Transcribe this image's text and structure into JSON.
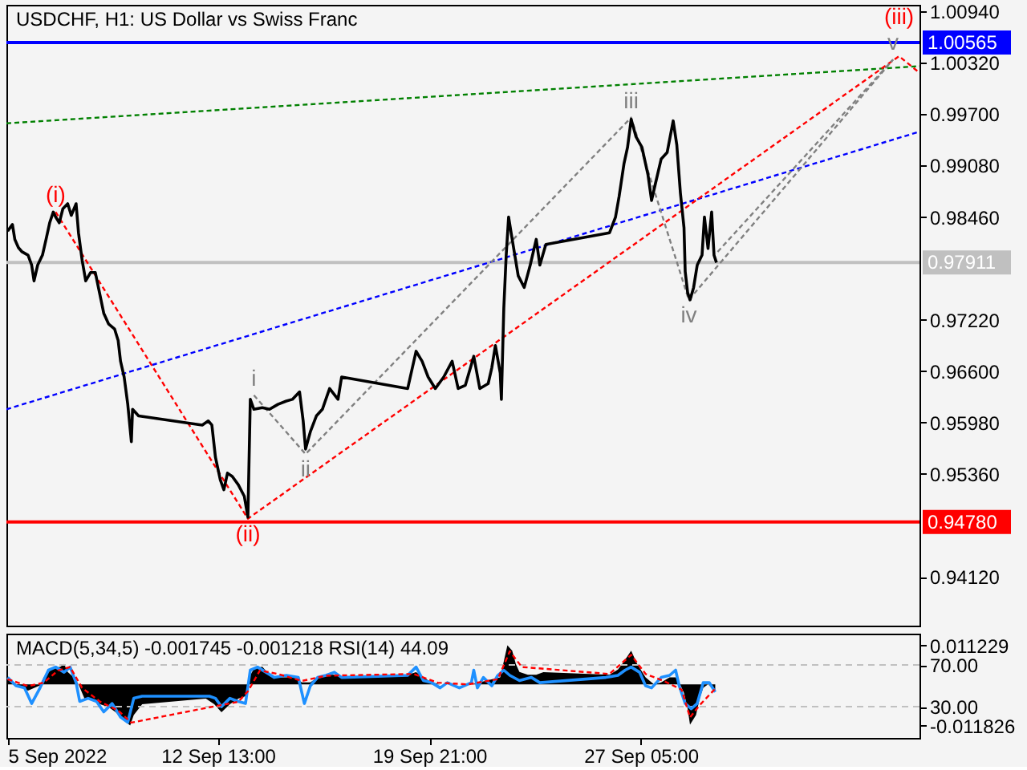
{
  "chart_data": [
    {
      "type": "line",
      "title": "USDCHF, H1: US Dollar vs Swiss Franc",
      "xlim": [
        "2022-09-05T05:00",
        "2022-10-06T21:00"
      ],
      "ylim": [
        0.9353,
        1.0102
      ],
      "tick_labels": "y",
      "yticks": [
        {
          "value": 1.0094,
          "label": "1.00940"
        },
        {
          "value": 1.0032,
          "label": "1.00320"
        },
        {
          "value": 0.997,
          "label": "0.99700"
        },
        {
          "value": 0.9908,
          "label": "0.99080"
        },
        {
          "value": 0.9846,
          "label": "0.98460"
        },
        {
          "value": 0.9722,
          "label": "0.97220"
        },
        {
          "value": 0.966,
          "label": "0.96600"
        },
        {
          "value": 0.9598,
          "label": "0.95980"
        },
        {
          "value": 0.9536,
          "label": "0.95360"
        },
        {
          "value": 0.9412,
          "label": "0.94120"
        }
      ],
      "series": [
        {
          "color": "#008000",
          "line_style": "dotted",
          "x": [
            "2022-09-05T05:00",
            "2022-10-06T21:00"
          ],
          "values": [
            0.9959,
            1.0028
          ]
        },
        {
          "color": "#0000ff",
          "line_style": "dotted",
          "x": [
            "2022-09-05T05:00",
            "2022-10-06T21:00"
          ],
          "values": [
            0.9614,
            0.9949
          ]
        },
        {
          "color": "#ff0000",
          "line_style": "dotted",
          "x": [
            "2022-09-06T22:00",
            "2022-09-13T14:00",
            "2022-10-06T04:00",
            "2022-10-06T21:00"
          ],
          "values": [
            0.9852,
            0.9482,
            1.004,
            1.002
          ]
        },
        {
          "color": "#808080",
          "line_style": "dotted",
          "x": [
            "2022-09-13T19:00",
            "2022-09-15T14:00",
            "2022-09-26T21:00",
            "2022-09-28T21:00",
            "2022-10-05T23:00"
          ],
          "values": [
            0.9631,
            0.956,
            0.9966,
            0.9746,
            1.0036
          ]
        },
        {
          "color": "#808080",
          "line_style": "dotted",
          "x": [
            "2022-09-29T21:00",
            "2022-10-05T23:00"
          ],
          "values": [
            0.9804,
            1.0036
          ]
        },
        {
          "color": "#000000",
          "x": [
            "2022-09-05T06:00",
            "2022-09-05T10:00",
            "2022-09-05T12:00",
            "2022-09-05T15:00",
            "2022-09-05T18:00",
            "2022-09-05T23:00",
            "2022-09-06T02:00",
            "2022-09-06T04:00",
            "2022-09-06T07:00",
            "2022-09-06T11:00",
            "2022-09-06T14:00",
            "2022-09-06T17:00",
            "2022-09-06T20:00",
            "2022-09-06T22:00",
            "2022-09-07T01:00",
            "2022-09-07T04:00",
            "2022-09-07T08:00",
            "2022-09-07T11:00",
            "2022-09-07T15:00",
            "2022-09-07T17:00",
            "2022-09-07T20:00",
            "2022-09-07T23:00",
            "2022-09-08T03:00",
            "2022-09-08T07:00",
            "2022-09-08T11:00",
            "2022-09-08T14:00",
            "2022-09-08T18:00",
            "2022-09-08T23:00",
            "2022-09-09T02:00",
            "2022-09-09T04:00",
            "2022-09-09T07:00",
            "2022-09-09T10:00",
            "2022-09-09T13:00",
            "2022-09-09T14:00",
            "2022-09-09T19:00",
            "2022-09-12T00:00",
            "2022-09-12T05:00",
            "2022-09-12T08:00",
            "2022-09-12T11:00",
            "2022-09-12T15:00",
            "2022-09-12T18:00",
            "2022-09-12T21:00",
            "2022-09-13T01:00",
            "2022-09-13T06:00",
            "2022-09-13T11:00",
            "2022-09-13T14:00",
            "2022-09-13T16:00",
            "2022-09-13T19:00",
            "2022-09-14T02:00",
            "2022-09-14T08:00",
            "2022-09-14T15:00",
            "2022-09-14T22:00",
            "2022-09-15T03:00",
            "2022-09-15T09:00",
            "2022-09-15T12:00",
            "2022-09-15T14:00",
            "2022-09-15T18:00",
            "2022-09-15T23:00",
            "2022-09-16T04:00",
            "2022-09-16T10:00",
            "2022-09-16T17:00",
            "2022-09-16T20:00",
            "2022-09-19T03:00",
            "2022-09-19T10:00",
            "2022-09-19T15:00",
            "2022-09-19T20:00",
            "2022-09-20T02:00",
            "2022-09-20T09:00",
            "2022-09-20T16:00",
            "2022-09-20T21:00",
            "2022-09-21T03:00",
            "2022-09-21T10:00",
            "2022-09-21T15:00",
            "2022-09-21T22:00",
            "2022-09-22T01:00",
            "2022-09-22T04:00",
            "2022-09-22T08:00",
            "2022-09-22T09:00",
            "2022-09-22T11:00",
            "2022-09-22T13:00",
            "2022-09-22T15:00",
            "2022-09-22T18:00",
            "2022-09-22T23:00",
            "2022-09-23T04:00",
            "2022-09-23T09:00",
            "2022-09-23T14:00",
            "2022-09-23T17:00",
            "2022-09-23T22:00",
            "2022-09-26T03:00",
            "2022-09-26T08:00",
            "2022-09-26T11:00",
            "2022-09-26T15:00",
            "2022-09-26T18:00",
            "2022-09-26T21:00",
            "2022-09-27T01:00",
            "2022-09-27T06:00",
            "2022-09-27T11:00",
            "2022-09-27T14:00",
            "2022-09-27T17:00",
            "2022-09-27T22:00",
            "2022-09-28T03:00",
            "2022-09-28T08:00",
            "2022-09-28T11:00",
            "2022-09-28T14:00",
            "2022-09-28T17:00",
            "2022-09-28T18:00",
            "2022-09-28T20:00",
            "2022-09-28T22:00",
            "2022-09-29T01:00",
            "2022-09-29T04:00",
            "2022-09-29T08:00",
            "2022-09-29T10:00",
            "2022-09-29T13:00",
            "2022-09-29T16:00",
            "2022-09-29T18:00",
            "2022-09-29T20:00"
          ],
          "values": [
            0.9829,
            0.9837,
            0.9819,
            0.9809,
            0.9804,
            0.98,
            0.9788,
            0.9769,
            0.9788,
            0.98,
            0.9819,
            0.9839,
            0.9852,
            0.9846,
            0.9839,
            0.9856,
            0.9862,
            0.9848,
            0.9862,
            0.9827,
            0.9794,
            0.9769,
            0.9779,
            0.9779,
            0.9751,
            0.973,
            0.9717,
            0.9711,
            0.9697,
            0.9672,
            0.9653,
            0.962,
            0.9575,
            0.9614,
            0.9606,
            0.9595,
            0.96,
            0.9595,
            0.9556,
            0.9529,
            0.9517,
            0.9537,
            0.9533,
            0.9523,
            0.9509,
            0.9484,
            0.9626,
            0.9614,
            0.9616,
            0.9614,
            0.962,
            0.9624,
            0.9626,
            0.9635,
            0.96,
            0.9566,
            0.9587,
            0.9606,
            0.9614,
            0.9639,
            0.9626,
            0.9653,
            0.9639,
            0.9684,
            0.9672,
            0.9653,
            0.9639,
            0.9653,
            0.9672,
            0.9639,
            0.9643,
            0.9678,
            0.9639,
            0.9645,
            0.9664,
            0.9691,
            0.9658,
            0.9626,
            0.9736,
            0.98,
            0.9846,
            0.9819,
            0.9775,
            0.9761,
            0.9788,
            0.9819,
            0.9788,
            0.9813,
            0.9827,
            0.9846,
            0.9871,
            0.991,
            0.993,
            0.9964,
            0.9943,
            0.993,
            0.9897,
            0.9866,
            0.9885,
            0.9916,
            0.9924,
            0.9962,
            0.9933,
            0.9875,
            0.9833,
            0.978,
            0.9755,
            0.9746,
            0.9761,
            0.9788,
            0.98,
            0.9846,
            0.9808,
            0.9852,
            0.98,
            0.9791
          ]
        }
      ],
      "ref_lines": [
        {
          "axis": "y",
          "value": 1.00565,
          "label": "1.00565",
          "color": "#0000ff"
        },
        {
          "axis": "y",
          "value": 0.97911,
          "label": "0.97911",
          "color": "#c0c0c0"
        },
        {
          "axis": "y",
          "value": 0.9478,
          "label": "0.94780",
          "color": "#ff0000"
        }
      ],
      "annotations": [
        {
          "text": "(i)",
          "x": "2022-09-06T22:00",
          "y": 0.9852
        },
        {
          "text": "(ii)",
          "x": "2022-09-13T14:00",
          "y": 0.9482
        },
        {
          "text": "i",
          "x": "2022-09-13T19:00",
          "y": 0.9631
        },
        {
          "text": "ii",
          "x": "2022-09-15T14:00",
          "y": 0.956
        },
        {
          "text": "iii",
          "x": "2022-09-26T21:00",
          "y": 0.9966
        },
        {
          "text": "iv",
          "x": "2022-09-28T21:00",
          "y": 0.9746
        },
        {
          "text": "v",
          "x": "2022-10-05T23:00",
          "y": 1.0036
        },
        {
          "text": "(iii)",
          "x": "2022-10-06T04:00",
          "y": 1.004
        }
      ]
    },
    {
      "type": "line",
      "title": "MACD(5,34,5) -0.001745 -0.001218 RSI(14) 44.09",
      "xlim": [
        "2022-09-05T05:00",
        "2022-10-06T21:00"
      ],
      "xticks": [
        {
          "value": "2022-09-05T06:00",
          "label": "5 Sep 2022"
        },
        {
          "value": "2022-09-12T13:00",
          "label": "12 Sep 13:00"
        },
        {
          "value": "2022-09-19T21:00",
          "label": "19 Sep 21:00"
        },
        {
          "value": "2022-09-27T05:00",
          "label": "27 Sep 05:00"
        }
      ],
      "ylim": [
        -0.0154,
        0.0146
      ],
      "yticks": [
        0.011229,
        -0.011826
      ],
      "y2lim": [
        0,
        100
      ],
      "y2ticks": [
        {
          "value": 70,
          "label": "70.00"
        },
        {
          "value": 30,
          "label": "30.00"
        }
      ],
      "series": [
        {
          "type": "area",
          "color": "#000000",
          "x": [
            "2022-09-05T06:00",
            "2022-09-05T13:00",
            "2022-09-05T23:00",
            "2022-09-06T09:00",
            "2022-09-06T12:00",
            "2022-09-06T19:00",
            "2022-09-07T02:00",
            "2022-09-07T05:00",
            "2022-09-07T08:00",
            "2022-09-07T13:00",
            "2022-09-07T17:00",
            "2022-09-07T22:00",
            "2022-09-08T04:00",
            "2022-09-08T11:00",
            "2022-09-08T18:00",
            "2022-09-09T00:00",
            "2022-09-09T07:00",
            "2022-09-09T12:00",
            "2022-09-09T15:00",
            "2022-09-09T22:00",
            "2022-09-12T03:00",
            "2022-09-12T10:00",
            "2022-09-12T16:00",
            "2022-09-12T23:00",
            "2022-09-13T06:00",
            "2022-09-13T12:00",
            "2022-09-13T15:00",
            "2022-09-13T19:00",
            "2022-09-14T02:00",
            "2022-09-14T08:00",
            "2022-09-14T15:00",
            "2022-09-14T22:00",
            "2022-09-15T04:00",
            "2022-09-15T11:00",
            "2022-09-15T18:00",
            "2022-09-16T00:00",
            "2022-09-16T07:00",
            "2022-09-16T14:00",
            "2022-09-16T20:00",
            "2022-09-19T03:00",
            "2022-09-19T10:00",
            "2022-09-19T16:00",
            "2022-09-19T23:00",
            "2022-09-20T06:00",
            "2022-09-20T12:00",
            "2022-09-20T19:00",
            "2022-09-21T02:00",
            "2022-09-21T08:00",
            "2022-09-21T15:00",
            "2022-09-21T22:00",
            "2022-09-22T08:00",
            "2022-09-22T14:00",
            "2022-09-22T18:00",
            "2022-09-22T21:00",
            "2022-09-23T00:00",
            "2022-09-23T07:00",
            "2022-09-23T14:00",
            "2022-09-23T20:00",
            "2022-09-26T03:00",
            "2022-09-26T10:00",
            "2022-09-26T15:00",
            "2022-09-26T21:00",
            "2022-09-27T02:00",
            "2022-09-27T09:00",
            "2022-09-27T16:00",
            "2022-09-27T22:00",
            "2022-09-28T05:00",
            "2022-09-28T10:00",
            "2022-09-28T13:00",
            "2022-09-28T17:00",
            "2022-09-28T20:00",
            "2022-09-28T22:00",
            "2022-09-29T03:00",
            "2022-09-29T06:00",
            "2022-09-29T09:00",
            "2022-09-29T13:00",
            "2022-09-29T19:00"
          ],
          "values": [
            0.002,
            0,
            -0.0018,
            -0.0003,
            0.002,
            0.0045,
            0.0051,
            0.0059,
            0.0036,
            0.002,
            0,
            -0.0041,
            -0.0041,
            -0.0057,
            -0.0065,
            -0.008,
            -0.0103,
            -0.011826,
            -0.0088,
            -0.0057,
            -0.0041,
            -0.0057,
            -0.008,
            -0.0057,
            -0.0041,
            -0.0034,
            0.002,
            0.0045,
            0.0051,
            0.0028,
            0.002,
            0.002,
            0.002,
            0.0006,
            0.0006,
            0.002,
            0.0028,
            0.0028,
            0.002,
            0.0028,
            0.0035,
            0.002,
            0.0006,
            0,
            0,
            0,
            0,
            0,
            0.0006,
            0.0012,
            0.002,
            0.011229,
            0.0097,
            0.0059,
            0.0036,
            0.0028,
            0.0028,
            0.0035,
            0.0028,
            0.0043,
            0.0066,
            0.0097,
            0.0059,
            0.002,
            0,
            0.0006,
            0.002,
            0.002,
            0.0006,
            -0.0025,
            -0.007,
            -0.0116,
            -0.0088,
            -0.0041,
            -0.001,
            0,
            -0.001745
          ]
        },
        {
          "color": "#1e90ff",
          "axis": "y2",
          "x": [
            "2022-09-05T06:00",
            "2022-09-05T13:00",
            "2022-09-05T20:00",
            "2022-09-06T02:00",
            "2022-09-06T09:00",
            "2022-09-06T16:00",
            "2022-09-06T22:00",
            "2022-09-07T05:00",
            "2022-09-07T10:00",
            "2022-09-07T15:00",
            "2022-09-07T18:00",
            "2022-09-08T01:00",
            "2022-09-08T08:00",
            "2022-09-08T14:00",
            "2022-09-08T21:00",
            "2022-09-09T04:00",
            "2022-09-09T10:00",
            "2022-09-09T15:00",
            "2022-09-09T22:00",
            "2022-09-12T06:00",
            "2022-09-12T11:00",
            "2022-09-12T16:00",
            "2022-09-12T23:00",
            "2022-09-13T06:00",
            "2022-09-13T12:00",
            "2022-09-13T16:00",
            "2022-09-13T22:00",
            "2022-09-14T05:00",
            "2022-09-14T12:00",
            "2022-09-14T22:00",
            "2022-09-15T08:00",
            "2022-09-15T13:00",
            "2022-09-15T18:00",
            "2022-09-16T00:00",
            "2022-09-16T07:00",
            "2022-09-16T14:00",
            "2022-09-16T20:00",
            "2022-09-19T03:00",
            "2022-09-19T10:00",
            "2022-09-19T16:00",
            "2022-09-19T23:00",
            "2022-09-20T06:00",
            "2022-09-20T12:00",
            "2022-09-20T22:00",
            "2022-09-21T08:00",
            "2022-09-21T10:00",
            "2022-09-21T13:00",
            "2022-09-21T18:00",
            "2022-09-22T01:00",
            "2022-09-22T06:00",
            "2022-09-22T11:00",
            "2022-09-22T16:00",
            "2022-09-23T00:00",
            "2022-09-23T10:00",
            "2022-09-23T17:00",
            "2022-09-26T00:00",
            "2022-09-26T10:00",
            "2022-09-26T16:00",
            "2022-09-26T21:00",
            "2022-09-27T04:00",
            "2022-09-27T09:00",
            "2022-09-27T14:00",
            "2022-09-27T22:00",
            "2022-09-28T05:00",
            "2022-09-28T10:00",
            "2022-09-28T13:00",
            "2022-09-28T18:00",
            "2022-09-28T23:00",
            "2022-09-29T04:00",
            "2022-09-29T09:00",
            "2022-09-29T14:00",
            "2022-09-29T19:00"
          ],
          "values": [
            58,
            50,
            48,
            33,
            48,
            65,
            68,
            63,
            68,
            53,
            35,
            38,
            35,
            25,
            33,
            20,
            15,
            38,
            40,
            40,
            38,
            30,
            38,
            35,
            33,
            65,
            68,
            63,
            58,
            60,
            58,
            33,
            50,
            58,
            60,
            63,
            58,
            60,
            68,
            55,
            53,
            48,
            53,
            48,
            53,
            65,
            48,
            58,
            50,
            60,
            65,
            60,
            55,
            58,
            53,
            58,
            60,
            65,
            68,
            63,
            50,
            48,
            58,
            60,
            65,
            50,
            33,
            28,
            33,
            53,
            53,
            44.09
          ]
        },
        {
          "color": "#ff0000",
          "line_style": "dotted",
          "x": [
            "2022-09-05T06:00",
            "2022-09-05T23:00",
            "2022-09-06T12:00",
            "2022-09-07T00:00",
            "2022-09-07T10:00",
            "2022-09-07T20:00",
            "2022-09-08T11:00",
            "2022-09-09T02:00",
            "2022-09-09T13:00",
            "2022-09-12T00:00",
            "2022-09-12T15:00",
            "2022-09-13T06:00",
            "2022-09-13T14:00",
            "2022-09-14T00:00",
            "2022-09-14T15:00",
            "2022-09-15T11:00",
            "2022-09-16T07:00",
            "2022-09-19T08:00",
            "2022-09-20T04:00",
            "2022-09-21T05:00",
            "2022-09-22T06:00",
            "2022-09-22T16:00",
            "2022-09-23T02:00",
            "2022-09-26T03:00",
            "2022-09-26T21:00",
            "2022-09-27T09:00",
            "2022-09-28T00:00",
            "2022-09-28T15:00",
            "2022-09-28T22:00",
            "2022-09-29T06:00",
            "2022-09-29T19:00"
          ],
          "values": [
            0.0015,
            -0.0005,
            0.0005,
            0.004,
            0.005,
            -0.001,
            -0.005,
            -0.0075,
            -0.011,
            -0.007,
            -0.006,
            -0.005,
            -0.002,
            0.004,
            0.003,
            0.001,
            0.0025,
            0.003,
            0.0005,
            0,
            0.0015,
            0.0095,
            0.005,
            0.003,
            0.0085,
            0.003,
            0.001,
            -0.0015,
            -0.0095,
            -0.006,
            -0.001218
          ]
        }
      ],
      "ref_lines": [
        {
          "axis": "y2",
          "value": 70,
          "color": "#c0c0c0",
          "line_style": "dashed"
        },
        {
          "axis": "y2",
          "value": 30,
          "color": "#c0c0c0",
          "line_style": "dashed"
        }
      ]
    }
  ]
}
